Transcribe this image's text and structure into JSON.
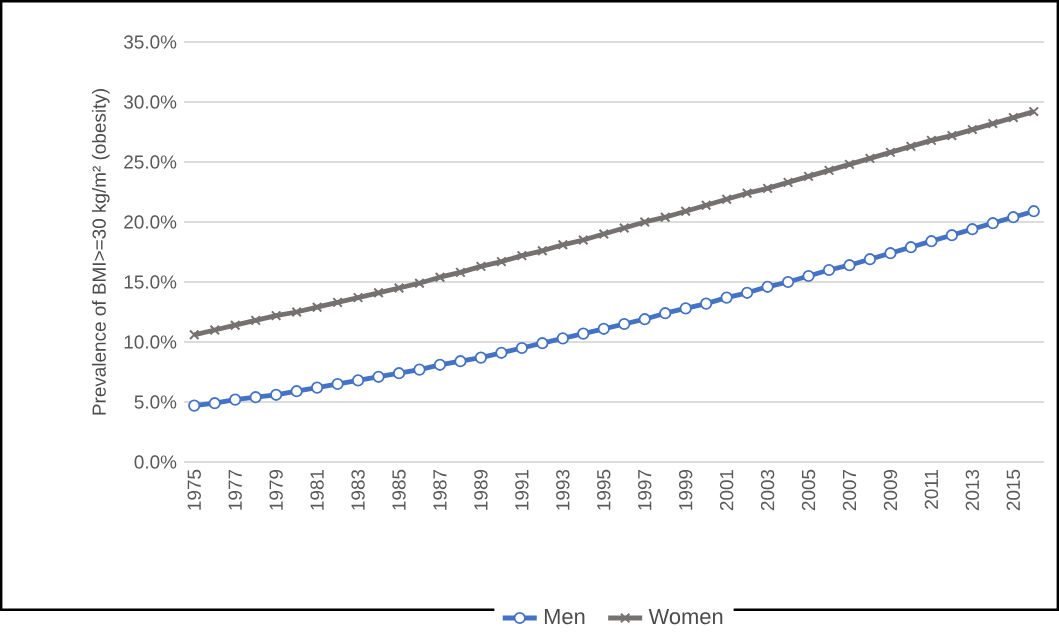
{
  "chart_data": {
    "type": "line",
    "ylabel": "Prevalence of BMI>=30 kg/m² (obesity)",
    "categories": [
      "1975",
      null,
      "1977",
      null,
      "1979",
      null,
      "1981",
      null,
      "1983",
      null,
      "1985",
      null,
      "1987",
      null,
      "1989",
      null,
      "1991",
      null,
      "1993",
      null,
      "1995",
      null,
      "1997",
      null,
      "1999",
      null,
      "2001",
      null,
      "2003",
      null,
      "2005",
      null,
      "2007",
      null,
      "2009",
      null,
      "2011",
      null,
      "2013",
      null,
      "2015",
      null
    ],
    "series": [
      {
        "name": "Men",
        "color": "#4472c4",
        "marker": "circle",
        "values": [
          4.7,
          4.9,
          5.2,
          5.4,
          5.6,
          5.9,
          6.2,
          6.5,
          6.8,
          7.1,
          7.4,
          7.7,
          8.1,
          8.4,
          8.7,
          9.1,
          9.5,
          9.9,
          10.3,
          10.7,
          11.1,
          11.5,
          11.9,
          12.4,
          12.8,
          13.2,
          13.7,
          14.1,
          14.6,
          15.0,
          15.5,
          16.0,
          16.4,
          16.9,
          17.4,
          17.9,
          18.4,
          18.9,
          19.4,
          19.9,
          20.4,
          20.9
        ]
      },
      {
        "name": "Women",
        "color": "#767171",
        "marker": "cross",
        "values": [
          10.6,
          11.0,
          11.4,
          11.8,
          12.2,
          12.5,
          12.9,
          13.3,
          13.7,
          14.1,
          14.5,
          14.9,
          15.4,
          15.8,
          16.3,
          16.7,
          17.2,
          17.6,
          18.1,
          18.5,
          19.0,
          19.5,
          20.0,
          20.4,
          20.9,
          21.4,
          21.9,
          22.4,
          22.8,
          23.3,
          23.8,
          24.3,
          24.8,
          25.3,
          25.8,
          26.3,
          26.8,
          27.2,
          27.7,
          28.2,
          28.7,
          29.2
        ]
      }
    ],
    "ylim": [
      0,
      35
    ],
    "yticks": [
      {
        "value": 0,
        "label": "0.0%"
      },
      {
        "value": 5,
        "label": "5.0%"
      },
      {
        "value": 10,
        "label": "10.0%"
      },
      {
        "value": 15,
        "label": "15.0%"
      },
      {
        "value": 20,
        "label": "20.0%"
      },
      {
        "value": 25,
        "label": "25.0%"
      },
      {
        "value": 30,
        "label": "30.0%"
      },
      {
        "value": 35,
        "label": "35.0%"
      }
    ],
    "grid": "y",
    "legend": "bottom",
    "line_style": "solid"
  }
}
